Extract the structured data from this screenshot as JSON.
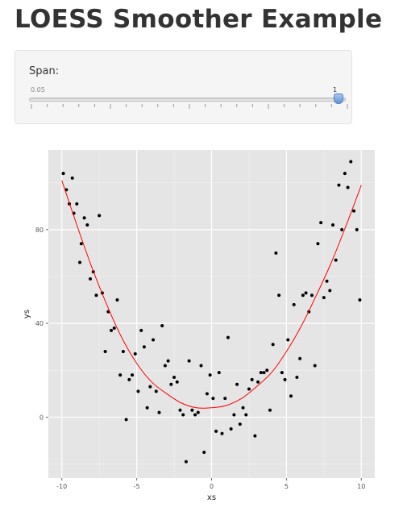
{
  "header": {
    "title": "LOESS Smoother Example"
  },
  "controls": {
    "span_label": "Span:",
    "slider": {
      "min_label": "0.05",
      "max_label": "1",
      "value": 1,
      "accent": "#5f94d6"
    }
  },
  "chart_data": {
    "type": "scatter",
    "title": "",
    "xlabel": "xs",
    "ylabel": "ys",
    "xlim": [
      -10.9,
      10.9
    ],
    "ylim": [
      -26,
      114
    ],
    "x_ticks": [
      -10,
      -5,
      0,
      5,
      10
    ],
    "y_ticks": [
      0,
      40,
      80
    ],
    "grid": true,
    "background": "#e5e5e5",
    "point_color": "#000000",
    "line_color": "#ff0000",
    "points": {
      "x": [
        -9.9,
        -9.7,
        -9.5,
        -9.3,
        -9.2,
        -9.0,
        -8.8,
        -8.7,
        -8.5,
        -8.3,
        -8.1,
        -7.9,
        -7.7,
        -7.5,
        -7.3,
        -7.1,
        -6.9,
        -6.7,
        -6.5,
        -6.3,
        -6.1,
        -5.9,
        -5.7,
        -5.5,
        -5.3,
        -5.1,
        -4.9,
        -4.7,
        -4.5,
        -4.3,
        -4.1,
        -3.9,
        -3.7,
        -3.5,
        -3.3,
        -3.1,
        -2.9,
        -2.7,
        -2.5,
        -2.3,
        -2.1,
        -1.9,
        -1.7,
        -1.5,
        -1.3,
        -1.1,
        -0.9,
        -0.7,
        -0.5,
        -0.3,
        -0.1,
        0.1,
        0.3,
        0.5,
        0.7,
        0.9,
        1.1,
        1.3,
        1.5,
        1.7,
        1.9,
        2.1,
        2.3,
        2.5,
        2.7,
        2.9,
        3.1,
        3.3,
        3.5,
        3.7,
        3.9,
        4.1,
        4.3,
        4.5,
        4.7,
        4.9,
        5.1,
        5.3,
        5.5,
        5.7,
        5.9,
        6.1,
        6.3,
        6.5,
        6.7,
        6.9,
        7.1,
        7.3,
        7.5,
        7.7,
        7.9,
        8.1,
        8.3,
        8.5,
        8.7,
        8.9,
        9.1,
        9.3,
        9.5,
        9.7,
        9.9
      ],
      "y": [
        104,
        97,
        91,
        102,
        87,
        91,
        66,
        74,
        85,
        82,
        59,
        62,
        52,
        86,
        53,
        28,
        45,
        37,
        38,
        50,
        18,
        28,
        -1,
        16,
        18,
        27,
        11,
        37,
        30,
        4,
        13,
        33,
        11,
        2,
        39,
        22,
        24,
        14,
        17,
        15,
        3,
        1,
        -19,
        24,
        3,
        1,
        2,
        22,
        -15,
        10,
        18,
        8,
        -6,
        19,
        -7,
        8,
        34,
        -5,
        1,
        14,
        -3,
        4,
        1,
        12,
        16,
        -8,
        15,
        19,
        19,
        20,
        3,
        31,
        70,
        52,
        19,
        16,
        33,
        9,
        48,
        17,
        25,
        52,
        53,
        45,
        52,
        22,
        74,
        83,
        51,
        58,
        54,
        82,
        67,
        99,
        80,
        104,
        98,
        109,
        88,
        80,
        50
      ]
    },
    "smooth": {
      "x": [
        -10,
        -9,
        -8,
        -7,
        -6,
        -5,
        -4,
        -3,
        -2,
        -1,
        0,
        1,
        2,
        3,
        4,
        5,
        6,
        7,
        8,
        9,
        10
      ],
      "y": [
        101,
        82,
        64,
        48,
        34,
        23,
        15,
        10,
        6,
        4,
        4,
        5,
        8,
        13,
        19,
        28,
        39,
        52,
        66,
        82,
        99
      ]
    }
  }
}
